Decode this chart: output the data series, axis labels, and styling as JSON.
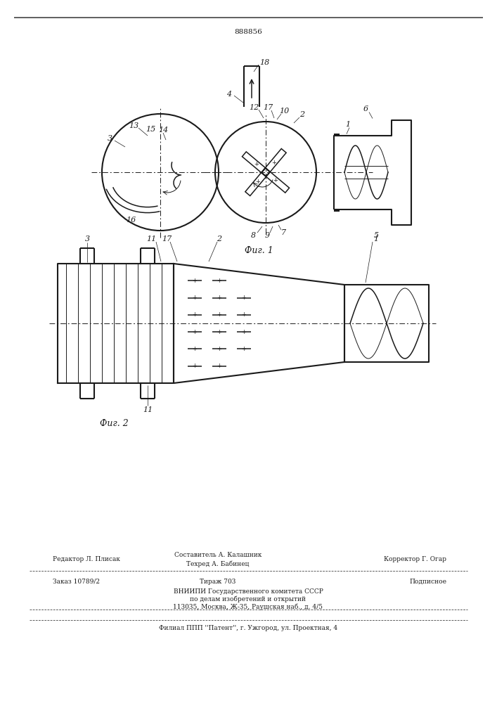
{
  "patent_number": "888856",
  "background_color": "#ffffff",
  "line_color": "#1a1a1a",
  "footer": {
    "line1_left": "Редактор Л. Плисак",
    "line1_center_top": "Составитель А. Калашник",
    "line1_center_bot": "Техред А. Бабинец",
    "line1_right": "Корректор Г. Огар",
    "line2_left": "Заказ 10789/2",
    "line2_center": "Тираж 703",
    "line2_right": "Подписное",
    "line3": "ВНИИПИ Государственного комитета СССР",
    "line4": "по делам изобретений и открытий",
    "line5": "113035, Москва, Ж-35, Раушская наб., д. 4/5",
    "line6": "Филиал ППП ''Патент'', г. Ужгород, ул. Проектная, 4"
  },
  "fig1_caption": "Фиг. 1",
  "fig2_caption": "Фиг. 2"
}
